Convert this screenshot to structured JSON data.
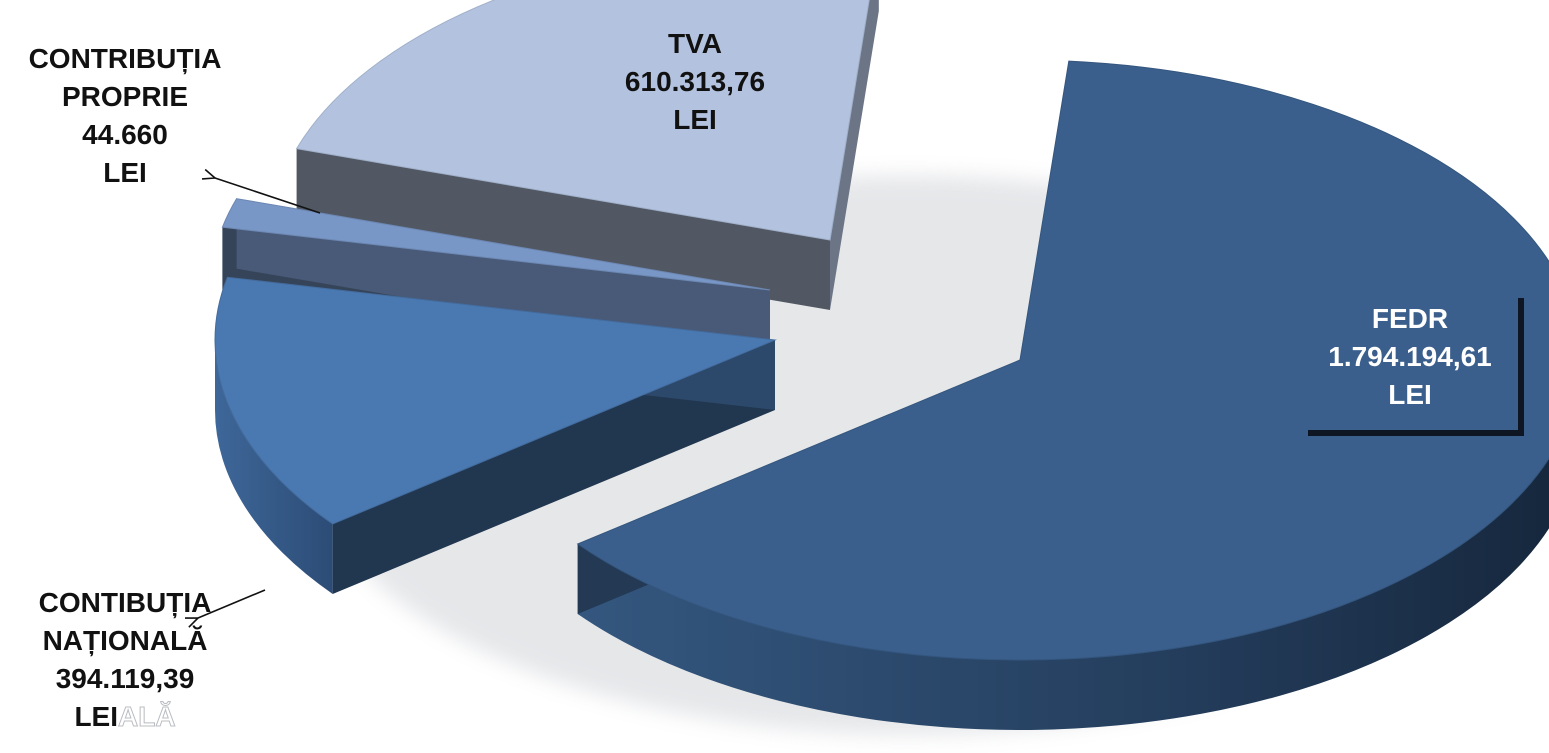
{
  "chart_data": {
    "type": "pie",
    "title": "",
    "slices": [
      {
        "name": "FEDR",
        "value": 1794194.61,
        "label_lines": [
          "FEDR",
          "1.794.194,61",
          "LEI"
        ],
        "color": "#3a5f8c"
      },
      {
        "name": "CONTIBUȚIA NAȚIONALĂ",
        "value": 394119.39,
        "label_lines": [
          "CONTIBUȚIA",
          "NAȚIONALĂ",
          "394.119,39",
          "LEI"
        ],
        "color": "#4a78b0"
      },
      {
        "name": "CONTRIBUȚIA PROPRIE",
        "value": 44660,
        "label_lines": [
          "CONTRIBUȚIA",
          "PROPRIE",
          "44.660",
          "LEI"
        ],
        "color": "#7896c6"
      },
      {
        "name": "TVA",
        "value": 610313.76,
        "label_lines": [
          "TVA",
          "610.313,76",
          "LEI"
        ],
        "color": "#b3c3df"
      }
    ],
    "legend": "none",
    "style": "3d exploded pie, data labels on/next to slices"
  },
  "ghost_text": "ALĂ"
}
